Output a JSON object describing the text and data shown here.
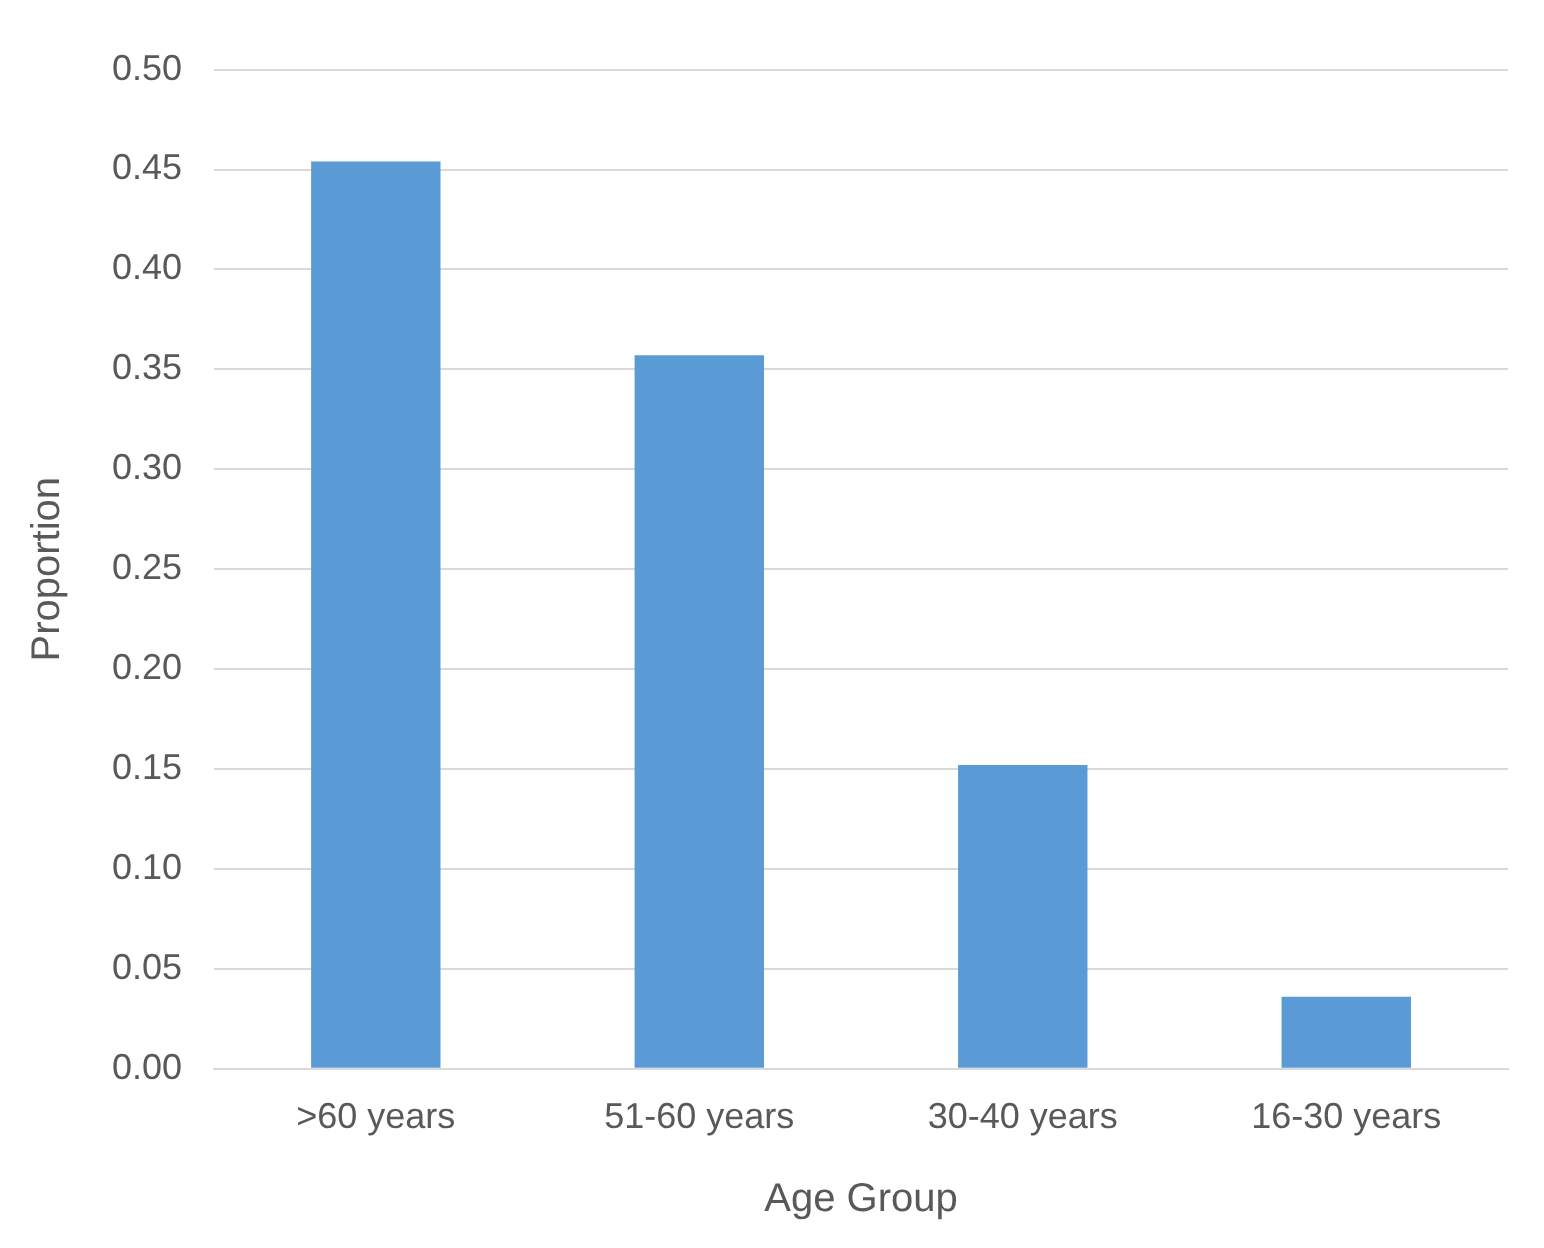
{
  "chart_data": {
    "type": "bar",
    "xlabel": "Age Group",
    "ylabel": "Proportion",
    "categories": [
      ">60 years",
      "51-60 years",
      "30-40 years",
      "16-30 years"
    ],
    "values": [
      0.454,
      0.357,
      0.152,
      0.036
    ],
    "color": "#5b9bd5",
    "ylim": [
      0,
      0.5
    ],
    "yticks": [
      {
        "value": 0,
        "label": "0.00"
      },
      {
        "value": 0.05,
        "label": "0.05"
      },
      {
        "value": 0.1,
        "label": "0.10"
      },
      {
        "value": 0.15,
        "label": "0.15"
      },
      {
        "value": 0.2,
        "label": "0.20"
      },
      {
        "value": 0.25,
        "label": "0.25"
      },
      {
        "value": 0.3,
        "label": "0.30"
      },
      {
        "value": 0.35,
        "label": "0.35"
      },
      {
        "value": 0.4,
        "label": "0.40"
      },
      {
        "value": 0.45,
        "label": "0.45"
      },
      {
        "value": 0.5,
        "label": "0.50"
      }
    ],
    "grid": "y"
  }
}
